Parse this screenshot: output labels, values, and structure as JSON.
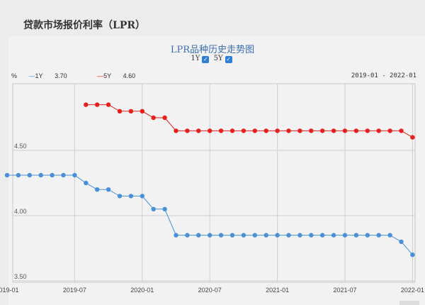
{
  "page_title": "贷款市场报价利率（LPR）",
  "chart_title": "LPR品种历史走势图",
  "toggles": [
    {
      "label": "1Y",
      "checked": true
    },
    {
      "label": "5Y",
      "checked": true
    }
  ],
  "legend": {
    "unit": "%",
    "items": [
      {
        "name": "1Y",
        "latest": "3.70",
        "color": "#4a90d9"
      },
      {
        "name": "5Y",
        "latest": "4.60",
        "color": "#e8201c"
      }
    ]
  },
  "range_label": "2019-01 - 2022-01",
  "chart_data": {
    "type": "line",
    "x": [
      "2019-01",
      "2019-02",
      "2019-03",
      "2019-04",
      "2019-05",
      "2019-06",
      "2019-07",
      "2019-08",
      "2019-09",
      "2019-10",
      "2019-11",
      "2019-12",
      "2020-01",
      "2020-02",
      "2020-03",
      "2020-04",
      "2020-05",
      "2020-06",
      "2020-07",
      "2020-08",
      "2020-09",
      "2020-10",
      "2020-11",
      "2020-12",
      "2021-01",
      "2021-02",
      "2021-03",
      "2021-04",
      "2021-05",
      "2021-06",
      "2021-07",
      "2021-08",
      "2021-09",
      "2021-10",
      "2021-11",
      "2021-12",
      "2022-01"
    ],
    "xticks": [
      "2019-01",
      "2019-07",
      "2020-01",
      "2020-07",
      "2021-01",
      "2021-07",
      "2022-01"
    ],
    "yticks": [
      "3.50",
      "4.00",
      "4.50"
    ],
    "ylim": [
      3.5,
      5.0
    ],
    "grid": true,
    "series": [
      {
        "name": "1Y",
        "color": "#4a90d9",
        "values": [
          4.31,
          4.31,
          4.31,
          4.31,
          4.31,
          4.31,
          4.31,
          4.25,
          4.2,
          4.2,
          4.15,
          4.15,
          4.15,
          4.05,
          4.05,
          3.85,
          3.85,
          3.85,
          3.85,
          3.85,
          3.85,
          3.85,
          3.85,
          3.85,
          3.85,
          3.85,
          3.85,
          3.85,
          3.85,
          3.85,
          3.85,
          3.85,
          3.85,
          3.85,
          3.85,
          3.8,
          3.7
        ]
      },
      {
        "name": "5Y",
        "color": "#e8201c",
        "values": [
          null,
          null,
          null,
          null,
          null,
          null,
          null,
          4.85,
          4.85,
          4.85,
          4.8,
          4.8,
          4.8,
          4.75,
          4.75,
          4.65,
          4.65,
          4.65,
          4.65,
          4.65,
          4.65,
          4.65,
          4.65,
          4.65,
          4.65,
          4.65,
          4.65,
          4.65,
          4.65,
          4.65,
          4.65,
          4.65,
          4.65,
          4.65,
          4.65,
          4.65,
          4.6
        ]
      }
    ]
  }
}
